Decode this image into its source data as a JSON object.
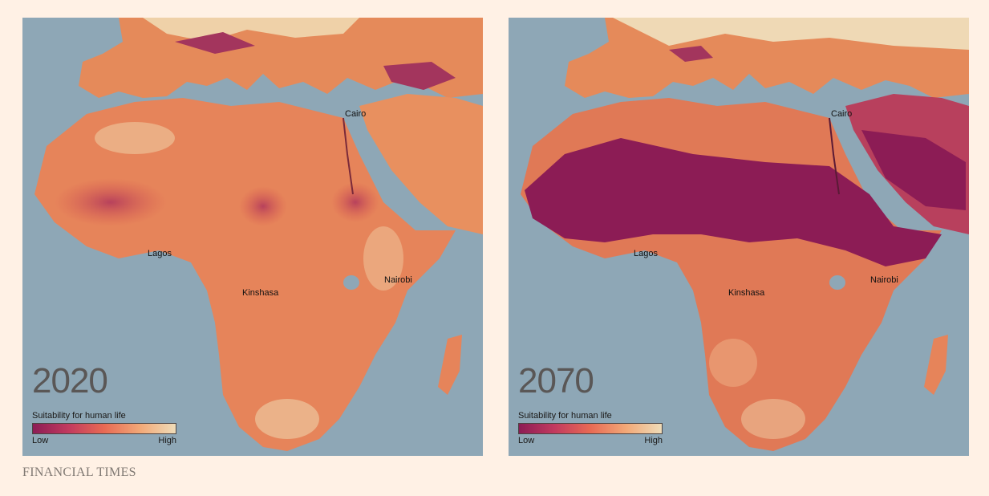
{
  "brand": "FINANCIAL TIMES",
  "legend": {
    "title": "Suitability for human life",
    "low": "Low",
    "high": "High"
  },
  "colors": {
    "sea": "#8ea7b6",
    "high": "#efdcb8",
    "mid": "#e86a54",
    "low": "#8c1c55",
    "tab_accent": "#0d7680"
  },
  "maps": [
    {
      "year": "2020",
      "cities": {
        "cairo": "Cairo",
        "lagos": "Lagos",
        "kinshasa": "Kinshasa",
        "nairobi": "Nairobi"
      }
    },
    {
      "year": "2070",
      "cities": {
        "cairo": "Cairo",
        "lagos": "Lagos",
        "kinshasa": "Kinshasa",
        "nairobi": "Nairobi"
      }
    }
  ]
}
